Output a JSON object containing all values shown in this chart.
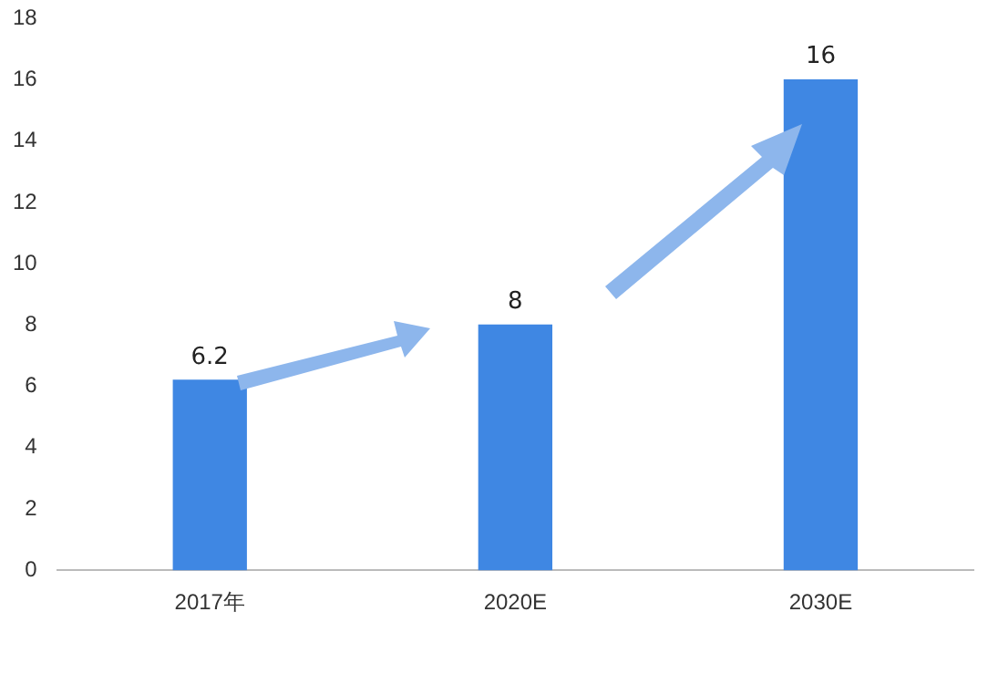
{
  "chart_data": {
    "type": "bar",
    "categories": [
      "2017年",
      "2020E",
      "2030E"
    ],
    "values": [
      6.2,
      8,
      16
    ],
    "color": "#3f87e3",
    "ylim": [
      0,
      18
    ],
    "yticks": [
      0,
      2,
      4,
      6,
      8,
      10,
      12,
      14,
      16,
      18
    ],
    "grid": false,
    "legend": false,
    "data_labels": true
  }
}
